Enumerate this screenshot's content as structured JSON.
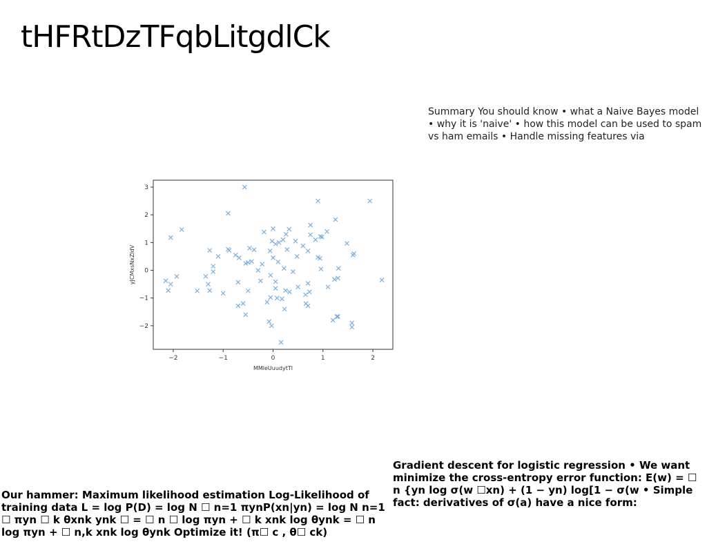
{
  "page": {
    "title": "tHFRtDzTFqbLitgdlCk",
    "summary_text": "Summary You should know • what a Naive Bayes model • why it is 'naive' • how this model can be used to spam vs ham emails • Handle missing features via",
    "gradient_text": "Gradient descent for logistic regression • We want minimize the cross-entropy error function: E(w) = ☐ n {yn log σ(w ☐xn) + (1 − yn) log[1 − σ(w • Simple fact: derivatives of σ(a) have a nice form:",
    "hammer_text": "Our hammer: Maximum likelihood estimation Log-Likelihood of training data L = log P(D) = log N ☐ n=1 πynP(xn|yn) = log N n=1 ☐ πyn ☐ k θxnk ynk ☐ = ☐ n ☐ log πyn + ☐ k xnk log θynk = ☐ n log πyn + ☐ n,k xnk log θynk Optimize it! (π☐ c , θ☐ ck)"
  },
  "chart_data": {
    "type": "scatter",
    "title": "",
    "xlabel": "MMleUuudytTl",
    "ylabel": "yJCMxsNxZldV",
    "xlim": [
      -2.4,
      2.4
    ],
    "ylim": [
      -2.85,
      3.25
    ],
    "x_ticks": [
      -2,
      -1,
      0,
      1,
      2
    ],
    "y_ticks": [
      -2,
      -1,
      0,
      1,
      2,
      3
    ],
    "x_tick_labels": [
      "−2",
      "−1",
      "0",
      "1",
      "2"
    ],
    "y_tick_labels": [
      "−2",
      "−1",
      "0",
      "1",
      "2",
      "3"
    ],
    "marker": "x",
    "color": "#7aaedc",
    "grid": false,
    "points": [
      [
        -0.57,
        3.0
      ],
      [
        -0.9,
        2.05
      ],
      [
        0.9,
        2.5
      ],
      [
        1.94,
        2.5
      ],
      [
        1.25,
        1.83
      ],
      [
        -2.05,
        1.18
      ],
      [
        -1.83,
        1.47
      ],
      [
        -0.88,
        0.72
      ],
      [
        -0.9,
        0.76
      ],
      [
        -1.27,
        0.72
      ],
      [
        -0.47,
        0.8
      ],
      [
        -0.38,
        0.74
      ],
      [
        -0.18,
        1.38
      ],
      [
        0.0,
        1.5
      ],
      [
        0.32,
        1.48
      ],
      [
        0.26,
        1.3
      ],
      [
        0.75,
        1.63
      ],
      [
        0.75,
        1.28
      ],
      [
        0.2,
        1.1
      ],
      [
        0.05,
        0.95
      ],
      [
        0.12,
        1.0
      ],
      [
        -0.02,
        1.05
      ],
      [
        0.45,
        1.05
      ],
      [
        0.7,
        0.7
      ],
      [
        0.85,
        1.1
      ],
      [
        0.95,
        1.22
      ],
      [
        0.98,
        1.2
      ],
      [
        1.08,
        1.4
      ],
      [
        1.48,
        0.97
      ],
      [
        1.62,
        0.6
      ],
      [
        1.6,
        0.55
      ],
      [
        0.9,
        0.47
      ],
      [
        0.94,
        0.43
      ],
      [
        0.96,
        0.05
      ],
      [
        1.31,
        0.07
      ],
      [
        0.6,
        0.88
      ],
      [
        0.48,
        0.5
      ],
      [
        0.28,
        0.75
      ],
      [
        0.1,
        0.3
      ],
      [
        0.0,
        0.45
      ],
      [
        -0.06,
        0.7
      ],
      [
        -0.75,
        0.55
      ],
      [
        -0.68,
        0.45
      ],
      [
        -0.55,
        0.25
      ],
      [
        -0.5,
        0.28
      ],
      [
        -0.43,
        0.32
      ],
      [
        -0.3,
        0.0
      ],
      [
        -0.22,
        0.22
      ],
      [
        -1.2,
        0.15
      ],
      [
        -1.1,
        0.5
      ],
      [
        -1.2,
        -0.05
      ],
      [
        -1.35,
        -0.22
      ],
      [
        -1.3,
        -0.5
      ],
      [
        -1.27,
        -0.73
      ],
      [
        -1.52,
        -0.74
      ],
      [
        -2.15,
        -0.38
      ],
      [
        -2.05,
        -0.5
      ],
      [
        -1.93,
        -0.22
      ],
      [
        -2.1,
        -0.73
      ],
      [
        -1.0,
        -0.83
      ],
      [
        -0.7,
        -0.43
      ],
      [
        -0.5,
        -0.74
      ],
      [
        -0.25,
        -0.38
      ],
      [
        -0.05,
        -0.18
      ],
      [
        0.05,
        -0.41
      ],
      [
        0.22,
        0.07
      ],
      [
        0.4,
        -0.05
      ],
      [
        0.5,
        -0.6
      ],
      [
        0.65,
        -0.88
      ],
      [
        0.7,
        -0.47
      ],
      [
        0.73,
        -0.78
      ],
      [
        1.1,
        -0.6
      ],
      [
        1.23,
        -0.33
      ],
      [
        1.3,
        -0.28
      ],
      [
        2.18,
        -0.35
      ],
      [
        0.25,
        -0.73
      ],
      [
        0.33,
        -0.78
      ],
      [
        0.08,
        -1.0
      ],
      [
        0.18,
        -1.03
      ],
      [
        0.05,
        -0.65
      ],
      [
        -0.05,
        -0.98
      ],
      [
        -0.12,
        -1.15
      ],
      [
        -0.6,
        -1.2
      ],
      [
        -0.7,
        -1.28
      ],
      [
        -0.55,
        -1.6
      ],
      [
        0.23,
        -1.4
      ],
      [
        0.66,
        -1.2
      ],
      [
        0.7,
        -1.28
      ],
      [
        1.2,
        -1.8
      ],
      [
        1.3,
        -1.67
      ],
      [
        1.28,
        -1.67
      ],
      [
        1.58,
        -1.9
      ],
      [
        1.58,
        -2.05
      ],
      [
        -0.08,
        -1.85
      ],
      [
        -0.03,
        -2.0
      ],
      [
        0.16,
        -2.6
      ]
    ]
  }
}
